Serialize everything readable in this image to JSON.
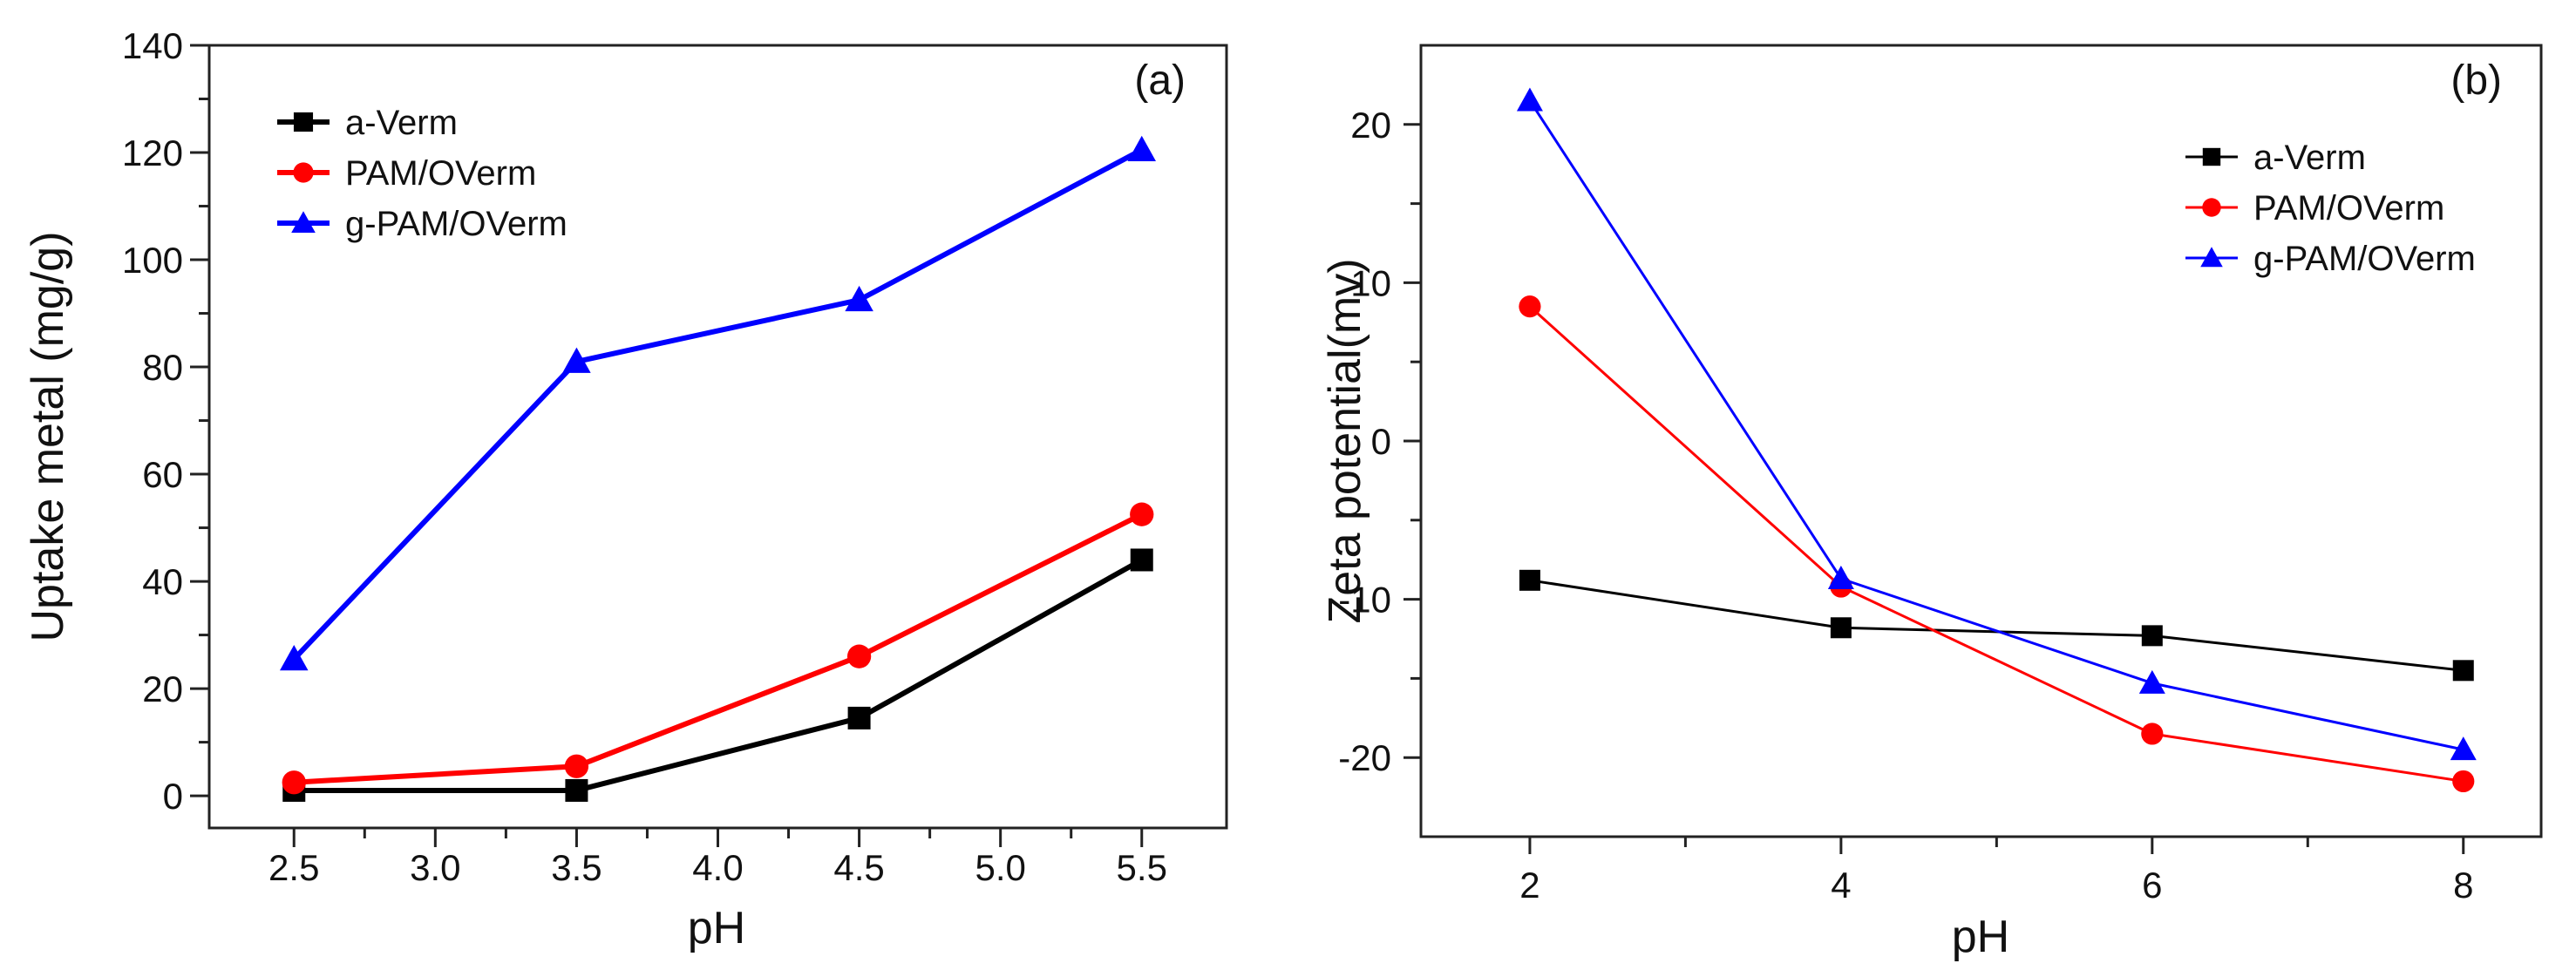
{
  "chart_data": [
    {
      "panel_label": "(a)",
      "type": "line",
      "title": "",
      "xlabel": "pH",
      "ylabel": "Uptake metal (mg/g)",
      "xlim": [
        2.2,
        5.8
      ],
      "ylim": [
        -6,
        140
      ],
      "xticks": [
        2.5,
        3.0,
        3.5,
        4.0,
        4.5,
        5.0,
        5.5
      ],
      "xtick_labels": [
        "2.5",
        "3.0",
        "3.5",
        "4.0",
        "4.5",
        "5.0",
        "5.5"
      ],
      "yticks": [
        0,
        20,
        40,
        60,
        80,
        100,
        120,
        140
      ],
      "ytick_labels": [
        "0",
        "20",
        "40",
        "60",
        "80",
        "100",
        "120",
        "140"
      ],
      "legend_position": "top-left",
      "grid": false,
      "x": [
        2.5,
        3.5,
        4.5,
        5.5
      ],
      "series": [
        {
          "name": "a-Verm",
          "color": "#000000",
          "marker": "square",
          "values": [
            1,
            1,
            14.5,
            44
          ]
        },
        {
          "name": "PAM/OVerm",
          "color": "#ff0000",
          "marker": "circle",
          "values": [
            2.5,
            5.5,
            26,
            52.5
          ]
        },
        {
          "name": "g-PAM/OVerm",
          "color": "#0000ff",
          "marker": "triangle",
          "values": [
            25.5,
            81,
            92.5,
            120.5
          ]
        }
      ]
    },
    {
      "panel_label": "(b)",
      "type": "line",
      "title": "",
      "xlabel": "pH",
      "ylabel": "Zeta potential(mv)",
      "xlim": [
        1.3,
        8.5
      ],
      "ylim": [
        -25,
        25
      ],
      "xticks": [
        2,
        4,
        6,
        8
      ],
      "xtick_labels": [
        "2",
        "4",
        "6",
        "8"
      ],
      "yticks": [
        -20,
        -10,
        0,
        10,
        20
      ],
      "ytick_labels": [
        "-20",
        "-10",
        "0",
        "10",
        "20"
      ],
      "legend_position": "top-right",
      "grid": false,
      "x": [
        2,
        4,
        6,
        8
      ],
      "series": [
        {
          "name": "a-Verm",
          "color": "#000000",
          "marker": "square",
          "values": [
            -8.8,
            -11.8,
            -12.3,
            -14.5
          ]
        },
        {
          "name": "PAM/OVerm",
          "color": "#ff0000",
          "marker": "circle",
          "values": [
            8.5,
            -9.2,
            -18.5,
            -21.5
          ]
        },
        {
          "name": "g-PAM/OVerm",
          "color": "#0000ff",
          "marker": "triangle",
          "values": [
            21.5,
            -8.7,
            -15.3,
            -19.5
          ]
        }
      ]
    }
  ]
}
